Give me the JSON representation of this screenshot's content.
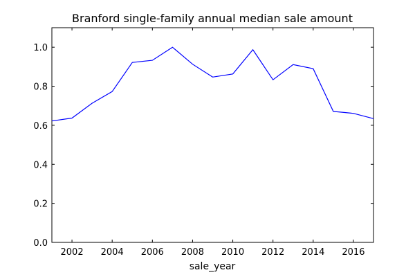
{
  "chart_data": {
    "type": "line",
    "title": "Branford single-family annual median sale amount",
    "xlabel": "sale_year",
    "ylabel": "",
    "xlim": [
      2001,
      2017
    ],
    "ylim": [
      0.0,
      1.1
    ],
    "grid": false,
    "x_ticks": [
      2002,
      2004,
      2006,
      2008,
      2010,
      2012,
      2014,
      2016
    ],
    "y_ticks": [
      0.0,
      0.2,
      0.4,
      0.6,
      0.8,
      1.0
    ],
    "x_tick_labels": [
      "2002",
      "2004",
      "2006",
      "2008",
      "2010",
      "2012",
      "2014",
      "2016"
    ],
    "y_tick_labels": [
      "0.0",
      "0.2",
      "0.4",
      "0.6",
      "0.8",
      "1.0"
    ],
    "line_color": "#0000ff",
    "series": [
      {
        "x": [
          2001,
          2002,
          2003,
          2004,
          2005,
          2006,
          2007,
          2008,
          2009,
          2010,
          2011,
          2012,
          2013,
          2014,
          2015,
          2016,
          2017
        ],
        "values": [
          0.622,
          0.637,
          0.713,
          0.773,
          0.922,
          0.933,
          1.0,
          0.913,
          0.847,
          0.863,
          0.987,
          0.833,
          0.911,
          0.89,
          0.671,
          0.661,
          0.634
        ]
      }
    ]
  }
}
